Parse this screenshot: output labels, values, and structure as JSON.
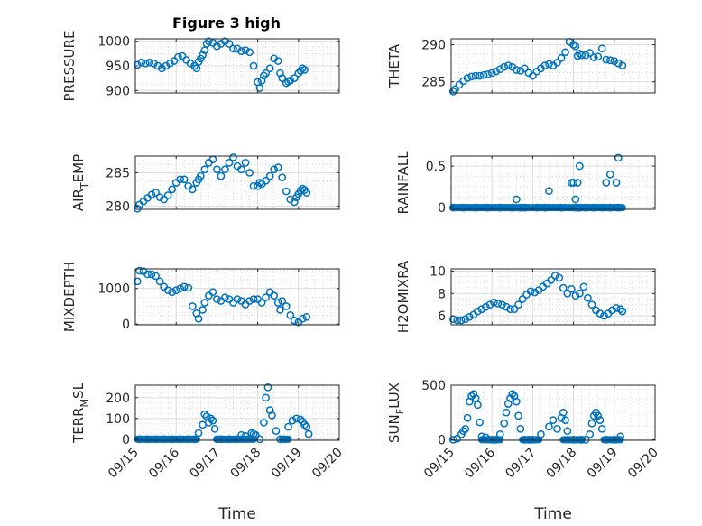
{
  "figure": {
    "title": "Figure 3 high",
    "marker_color": "#0072BD",
    "marker": "open-circle",
    "grid": "major and minor on"
  },
  "chart_data": [
    {
      "type": "scatter",
      "id": "pressure",
      "title": "Figure 3 high",
      "ylabel": "PRESSURE",
      "ylabel_sub": "",
      "ylabel_post": "",
      "xlabel": "",
      "ylim": [
        895,
        1005
      ],
      "yticks": [
        900,
        950,
        1000
      ],
      "xlim": [
        0,
        5
      ],
      "xticks": [
        "09/15",
        "09/16",
        "09/17",
        "09/18",
        "09/19",
        "09/20"
      ],
      "show_xticklabels": false,
      "x": [
        0.05,
        0.15,
        0.25,
        0.35,
        0.45,
        0.55,
        0.65,
        0.75,
        0.85,
        0.95,
        1.05,
        1.15,
        1.25,
        1.35,
        1.45,
        1.5,
        1.55,
        1.6,
        1.65,
        1.7,
        1.75,
        1.8,
        1.9,
        2.0,
        2.1,
        2.2,
        2.3,
        2.4,
        2.5,
        2.6,
        2.7,
        2.8,
        2.9,
        3.0,
        3.05,
        3.1,
        3.15,
        3.2,
        3.3,
        3.4,
        3.5,
        3.55,
        3.6,
        3.7,
        3.75,
        3.8,
        3.9,
        4.0,
        4.05,
        4.1,
        4.15
      ],
      "y": [
        952,
        957,
        955,
        957,
        955,
        950,
        945,
        950,
        955,
        960,
        968,
        970,
        962,
        955,
        950,
        945,
        958,
        965,
        972,
        982,
        995,
        1000,
        997,
        990,
        995,
        1000,
        995,
        985,
        985,
        980,
        982,
        978,
        950,
        917,
        905,
        920,
        930,
        935,
        945,
        965,
        960,
        935,
        925,
        915,
        918,
        920,
        925,
        935,
        940,
        945,
        942
      ]
    },
    {
      "type": "scatter",
      "id": "theta",
      "ylabel": "THETA",
      "ylabel_sub": "",
      "ylabel_post": "",
      "xlabel": "",
      "ylim": [
        283.5,
        290.8
      ],
      "yticks": [
        285,
        290
      ],
      "xlim": [
        0,
        5
      ],
      "xticks": [
        "09/15",
        "09/16",
        "09/17",
        "09/18",
        "09/19",
        "09/20"
      ],
      "show_xticklabels": false,
      "x": [
        0.05,
        0.1,
        0.2,
        0.3,
        0.4,
        0.5,
        0.6,
        0.7,
        0.8,
        0.9,
        1.0,
        1.1,
        1.2,
        1.3,
        1.4,
        1.5,
        1.6,
        1.7,
        1.8,
        1.9,
        2.0,
        2.1,
        2.2,
        2.3,
        2.4,
        2.5,
        2.6,
        2.7,
        2.8,
        2.9,
        3.0,
        3.05,
        3.1,
        3.15,
        3.2,
        3.3,
        3.4,
        3.5,
        3.6,
        3.7,
        3.8,
        3.9,
        4.0,
        4.1,
        4.2
      ],
      "y": [
        283.7,
        284.0,
        284.6,
        285.1,
        285.5,
        285.7,
        285.8,
        285.8,
        285.9,
        286.0,
        286.2,
        286.4,
        286.7,
        287.0,
        287.2,
        287.0,
        286.6,
        286.5,
        286.8,
        286.2,
        285.8,
        286.4,
        286.8,
        287.2,
        287.4,
        287.2,
        287.6,
        288.2,
        289.0,
        290.4,
        290.0,
        289.8,
        288.5,
        288.8,
        288.6,
        288.6,
        288.9,
        288.3,
        288.4,
        289.5,
        288.0,
        287.9,
        287.8,
        287.5,
        287.2
      ]
    },
    {
      "type": "scatter",
      "id": "air_temp",
      "ylabel": "AIR",
      "ylabel_sub": "T",
      "ylabel_post": "EMP",
      "xlabel": "",
      "ylim": [
        279.5,
        287.5
      ],
      "yticks": [
        280,
        285
      ],
      "xlim": [
        0,
        5
      ],
      "xticks": [
        "09/15",
        "09/16",
        "09/17",
        "09/18",
        "09/19",
        "09/20"
      ],
      "show_xticklabels": false,
      "x": [
        0.05,
        0.1,
        0.2,
        0.3,
        0.4,
        0.5,
        0.6,
        0.7,
        0.8,
        0.9,
        1.0,
        1.1,
        1.2,
        1.3,
        1.4,
        1.5,
        1.55,
        1.6,
        1.7,
        1.8,
        1.9,
        2.0,
        2.1,
        2.2,
        2.3,
        2.4,
        2.5,
        2.6,
        2.7,
        2.8,
        2.9,
        3.0,
        3.05,
        3.1,
        3.2,
        3.3,
        3.4,
        3.5,
        3.6,
        3.7,
        3.8,
        3.9,
        3.95,
        4.0,
        4.05,
        4.1,
        4.15,
        4.2
      ],
      "y": [
        279.6,
        280.2,
        280.7,
        281.2,
        281.7,
        282.0,
        281.3,
        281.0,
        281.6,
        282.5,
        283.5,
        284.0,
        284.0,
        283.0,
        282.5,
        283.5,
        284.0,
        284.5,
        285.5,
        286.5,
        287.0,
        285.5,
        284.5,
        285.5,
        286.5,
        287.3,
        286.0,
        285.5,
        286.5,
        285.0,
        283.0,
        283.0,
        283.5,
        283.3,
        283.8,
        284.5,
        285.5,
        285.8,
        284.3,
        282.2,
        281.0,
        280.6,
        281.3,
        281.8,
        282.3,
        282.6,
        282.4,
        282.0
      ]
    },
    {
      "type": "scatter",
      "id": "rainfall",
      "ylabel": "RAINFALL",
      "ylabel_sub": "",
      "ylabel_post": "",
      "xlabel": "",
      "ylim": [
        -0.02,
        0.62
      ],
      "yticks": [
        0,
        0.5
      ],
      "xlim": [
        0,
        5
      ],
      "xticks": [
        "09/15",
        "09/16",
        "09/17",
        "09/18",
        "09/19",
        "09/20"
      ],
      "show_xticklabels": false,
      "x": [
        0.05,
        0.3,
        0.6,
        0.9,
        1.2,
        1.5,
        1.6,
        1.7,
        1.8,
        2.1,
        2.4,
        2.7,
        2.95,
        3.0,
        3.05,
        3.1,
        3.15,
        3.3,
        3.5,
        3.7,
        3.9,
        4.1,
        2.3,
        3.05,
        3.1,
        3.15,
        3.8,
        3.9,
        4.05,
        4.1
      ],
      "y": [
        0,
        0,
        0,
        0,
        0,
        0,
        0.1,
        0,
        0,
        0,
        0.2,
        0,
        0.3,
        0.3,
        0.1,
        0.3,
        0.5,
        0,
        0,
        0,
        0,
        0,
        0,
        0,
        0,
        0,
        0.3,
        0.4,
        0.3,
        0.6
      ]
    },
    {
      "type": "scatter",
      "id": "mixdepth",
      "ylabel": "MIXDEPTH",
      "ylabel_sub": "",
      "ylabel_post": "",
      "xlabel": "",
      "ylim": [
        -20,
        1550
      ],
      "yticks": [
        0,
        1000
      ],
      "xlim": [
        0,
        5
      ],
      "xticks": [
        "09/15",
        "09/16",
        "09/17",
        "09/18",
        "09/19",
        "09/20"
      ],
      "show_xticklabels": false,
      "x": [
        0.05,
        0.1,
        0.2,
        0.3,
        0.4,
        0.5,
        0.6,
        0.7,
        0.8,
        0.9,
        1.0,
        1.1,
        1.2,
        1.3,
        1.4,
        1.5,
        1.55,
        1.65,
        1.7,
        1.8,
        1.9,
        2.0,
        2.1,
        2.2,
        2.3,
        2.4,
        2.5,
        2.6,
        2.7,
        2.8,
        2.9,
        3.0,
        3.1,
        3.2,
        3.3,
        3.4,
        3.5,
        3.55,
        3.6,
        3.7,
        3.8,
        3.9,
        4.0,
        4.1,
        4.2
      ],
      "y": [
        1200,
        1500,
        1480,
        1400,
        1400,
        1350,
        1200,
        1050,
        950,
        900,
        950,
        1000,
        1050,
        1020,
        500,
        300,
        150,
        400,
        600,
        800,
        900,
        700,
        650,
        750,
        700,
        600,
        700,
        650,
        550,
        650,
        700,
        700,
        600,
        750,
        900,
        800,
        600,
        400,
        650,
        500,
        250,
        100,
        50,
        150,
        200
      ]
    },
    {
      "type": "scatter",
      "id": "h2omixra",
      "ylabel": "H2OMIXRA",
      "ylabel_sub": "",
      "ylabel_post": "",
      "xlabel": "",
      "ylim": [
        5.2,
        10.2
      ],
      "yticks": [
        6,
        8,
        10
      ],
      "xlim": [
        0,
        5
      ],
      "xticks": [
        "09/15",
        "09/16",
        "09/17",
        "09/18",
        "09/19",
        "09/20"
      ],
      "show_xticklabels": false,
      "x": [
        0.05,
        0.15,
        0.25,
        0.35,
        0.45,
        0.55,
        0.65,
        0.75,
        0.85,
        0.95,
        1.05,
        1.15,
        1.25,
        1.35,
        1.45,
        1.55,
        1.65,
        1.75,
        1.85,
        1.95,
        2.05,
        2.15,
        2.25,
        2.35,
        2.45,
        2.55,
        2.65,
        2.75,
        2.85,
        2.95,
        3.05,
        3.15,
        3.25,
        3.35,
        3.45,
        3.55,
        3.65,
        3.75,
        3.85,
        3.95,
        4.05,
        4.15,
        4.2
      ],
      "y": [
        5.7,
        5.6,
        5.6,
        5.7,
        5.9,
        6.1,
        6.4,
        6.6,
        6.8,
        7.0,
        7.2,
        7.1,
        7.0,
        6.8,
        6.6,
        6.6,
        7.0,
        7.5,
        7.9,
        8.2,
        8.1,
        8.3,
        8.6,
        8.9,
        9.2,
        9.6,
        9.4,
        8.5,
        8.0,
        8.4,
        7.8,
        8.0,
        8.6,
        7.6,
        7.0,
        6.5,
        6.2,
        6.0,
        6.2,
        6.5,
        6.7,
        6.6,
        6.4
      ]
    },
    {
      "type": "scatter",
      "id": "terr_msl",
      "ylabel": "TERR",
      "ylabel_sub": "M",
      "ylabel_post": "SL",
      "xlabel": "Time",
      "ylim": [
        -5,
        260
      ],
      "yticks": [
        0,
        100,
        200
      ],
      "xlim": [
        0,
        5
      ],
      "xticks": [
        "09/15",
        "09/16",
        "09/17",
        "09/18",
        "09/19",
        "09/20"
      ],
      "show_xticklabels": true,
      "x": [
        0.1,
        0.3,
        0.5,
        0.7,
        0.9,
        1.1,
        1.3,
        1.45,
        1.55,
        1.65,
        1.7,
        1.75,
        1.8,
        1.85,
        1.9,
        1.95,
        2.0,
        2.1,
        2.3,
        2.5,
        2.7,
        2.85,
        2.95,
        3.05,
        3.15,
        3.2,
        3.25,
        3.3,
        3.35,
        3.45,
        3.55,
        3.65,
        3.75,
        3.85,
        3.95,
        4.05,
        4.1,
        4.15,
        4.2,
        4.25,
        2.6,
        2.9
      ],
      "y": [
        0,
        0,
        0,
        0,
        0,
        0,
        0,
        0,
        30,
        70,
        120,
        110,
        80,
        100,
        90,
        50,
        0,
        0,
        0,
        0,
        15,
        30,
        20,
        0,
        80,
        200,
        250,
        140,
        115,
        40,
        0,
        0,
        60,
        90,
        100,
        95,
        85,
        70,
        60,
        25,
        20,
        25
      ]
    },
    {
      "type": "scatter",
      "id": "sun_flux",
      "ylabel": "SUN",
      "ylabel_sub": "F",
      "ylabel_post": "LUX",
      "xlabel": "Time",
      "ylim": [
        -5,
        500
      ],
      "yticks": [
        0,
        500
      ],
      "xlim": [
        0,
        5
      ],
      "xticks": [
        "09/15",
        "09/16",
        "09/17",
        "09/18",
        "09/19",
        "09/20"
      ],
      "show_xticklabels": true,
      "x": [
        0.05,
        0.15,
        0.25,
        0.3,
        0.35,
        0.4,
        0.45,
        0.5,
        0.55,
        0.6,
        0.65,
        0.7,
        0.75,
        0.85,
        1.0,
        1.1,
        1.2,
        1.3,
        1.35,
        1.4,
        1.45,
        1.5,
        1.55,
        1.6,
        1.65,
        1.7,
        1.8,
        1.9,
        2.0,
        2.2,
        2.4,
        2.5,
        2.6,
        2.7,
        2.75,
        2.8,
        2.85,
        3.0,
        3.2,
        3.3,
        3.4,
        3.45,
        3.5,
        3.55,
        3.6,
        3.65,
        3.7,
        3.8,
        4.0,
        4.15
      ],
      "y": [
        0,
        10,
        50,
        80,
        100,
        200,
        350,
        400,
        420,
        380,
        320,
        160,
        30,
        20,
        0,
        0,
        50,
        150,
        250,
        330,
        380,
        420,
        400,
        350,
        220,
        100,
        0,
        0,
        0,
        50,
        120,
        180,
        100,
        200,
        250,
        180,
        80,
        0,
        0,
        0,
        50,
        150,
        220,
        250,
        220,
        180,
        100,
        0,
        0,
        30
      ]
    }
  ]
}
